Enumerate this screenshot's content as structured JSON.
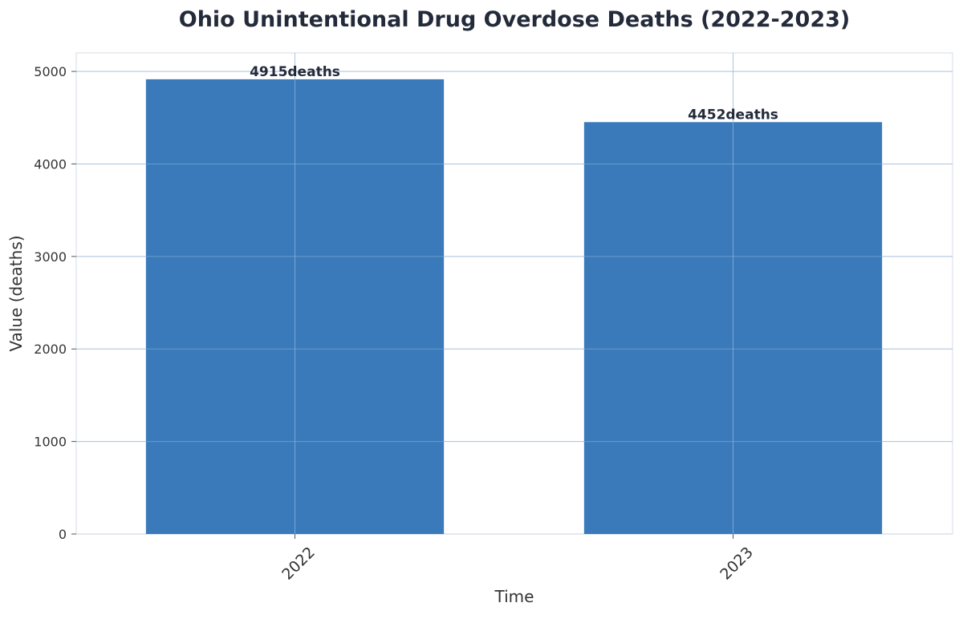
{
  "chart_data": {
    "type": "bar",
    "title": "Ohio Unintentional Drug Overdose Deaths (2022-2023)",
    "xlabel": "Time",
    "ylabel": "Value (deaths)",
    "categories": [
      "2022",
      "2023"
    ],
    "values": [
      4915,
      4452
    ],
    "value_labels": [
      "4915deaths",
      "4452deaths"
    ],
    "ylim": [
      0,
      5200
    ],
    "yticks": [
      0,
      1000,
      2000,
      3000,
      4000,
      5000
    ],
    "grid": true,
    "legend": "none",
    "bar_color": "#3a7aba",
    "grid_color": "#cfd8e3"
  }
}
